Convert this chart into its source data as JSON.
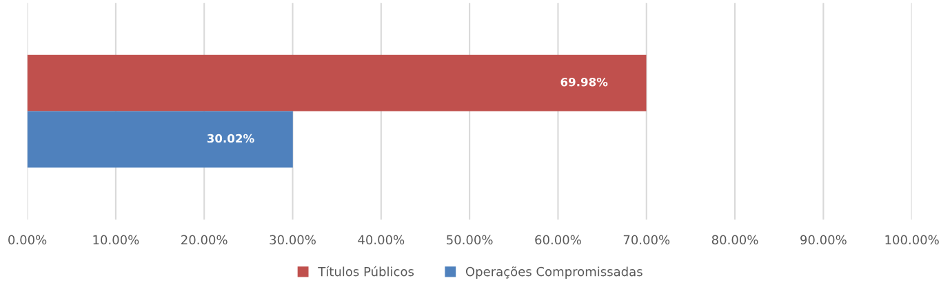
{
  "chart_data": {
    "type": "bar",
    "orientation": "horizontal",
    "categories": [
      null
    ],
    "series": [
      {
        "name": "Títulos Públicos",
        "color": "#c0504d",
        "values": [
          69.98
        ],
        "value_labels": [
          "69.98%"
        ]
      },
      {
        "name": "Operações Compromissadas",
        "color": "#4f81bd",
        "values": [
          30.02
        ],
        "value_labels": [
          "30.02%"
        ]
      }
    ],
    "xlim": [
      0,
      100
    ],
    "xticks": [
      {
        "value": 0,
        "label": "0.00%"
      },
      {
        "value": 10,
        "label": "10.00%"
      },
      {
        "value": 20,
        "label": "20.00%"
      },
      {
        "value": 30,
        "label": "30.00%"
      },
      {
        "value": 40,
        "label": "40.00%"
      },
      {
        "value": 50,
        "label": "50.00%"
      },
      {
        "value": 60,
        "label": "60.00%"
      },
      {
        "value": 70,
        "label": "70.00%"
      },
      {
        "value": 80,
        "label": "80.00%"
      },
      {
        "value": 90,
        "label": "90.00%"
      },
      {
        "value": 100,
        "label": "100.00%"
      }
    ],
    "grid": "x",
    "legend": "bottom",
    "tick_labels": "x"
  }
}
